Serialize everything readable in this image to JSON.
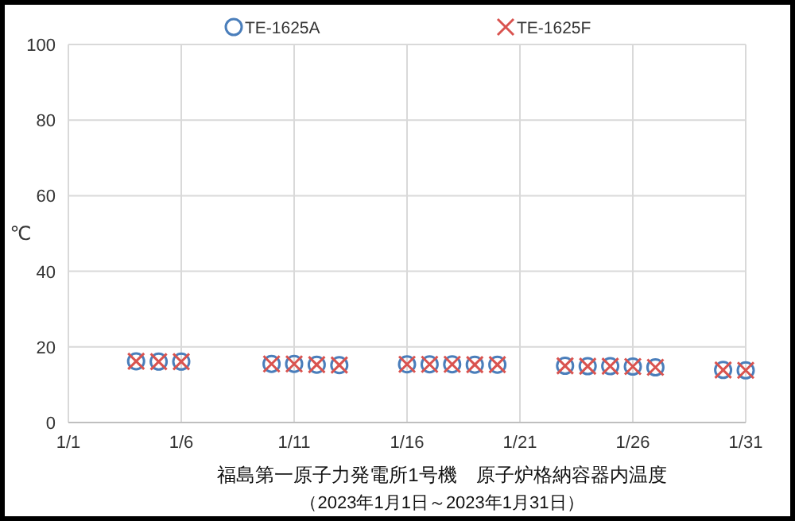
{
  "chart_data": {
    "type": "scatter",
    "title": "福島第一原子力発電所1号機　原子炉格納容器内温度",
    "subtitle": "（2023年1月1日～2023年1月31日）",
    "ylabel": "℃",
    "x": [
      "2023-01-04",
      "2023-01-05",
      "2023-01-06",
      "2023-01-10",
      "2023-01-11",
      "2023-01-12",
      "2023-01-13",
      "2023-01-16",
      "2023-01-17",
      "2023-01-18",
      "2023-01-19",
      "2023-01-20",
      "2023-01-23",
      "2023-01-24",
      "2023-01-25",
      "2023-01-26",
      "2023-01-27",
      "2023-01-30",
      "2023-01-31"
    ],
    "series": [
      {
        "name": "TE-1625A",
        "color": "#4a7ebb",
        "marker": "circle",
        "values": [
          16.2,
          16.1,
          16.1,
          15.5,
          15.5,
          15.3,
          15.2,
          15.4,
          15.4,
          15.4,
          15.3,
          15.3,
          15.0,
          14.9,
          14.9,
          14.8,
          14.6,
          13.9,
          13.8
        ]
      },
      {
        "name": "TE-1625F",
        "color": "#d9534f",
        "marker": "cross",
        "values": [
          16.2,
          16.1,
          16.1,
          15.5,
          15.5,
          15.3,
          15.2,
          15.4,
          15.4,
          15.4,
          15.3,
          15.3,
          15.0,
          14.9,
          14.9,
          14.8,
          14.6,
          13.9,
          13.8
        ]
      }
    ],
    "xlim": [
      "2023-01-01",
      "2023-01-31"
    ],
    "xticks": [
      {
        "value": "2023-01-01",
        "label": "1/1"
      },
      {
        "value": "2023-01-06",
        "label": "1/6"
      },
      {
        "value": "2023-01-11",
        "label": "1/11"
      },
      {
        "value": "2023-01-16",
        "label": "1/16"
      },
      {
        "value": "2023-01-21",
        "label": "1/21"
      },
      {
        "value": "2023-01-26",
        "label": "1/26"
      },
      {
        "value": "2023-01-31",
        "label": "1/31"
      }
    ],
    "ylim": [
      0,
      100
    ],
    "yticks": [
      0,
      20,
      40,
      60,
      80,
      100
    ],
    "grid": true,
    "legend": "top"
  }
}
